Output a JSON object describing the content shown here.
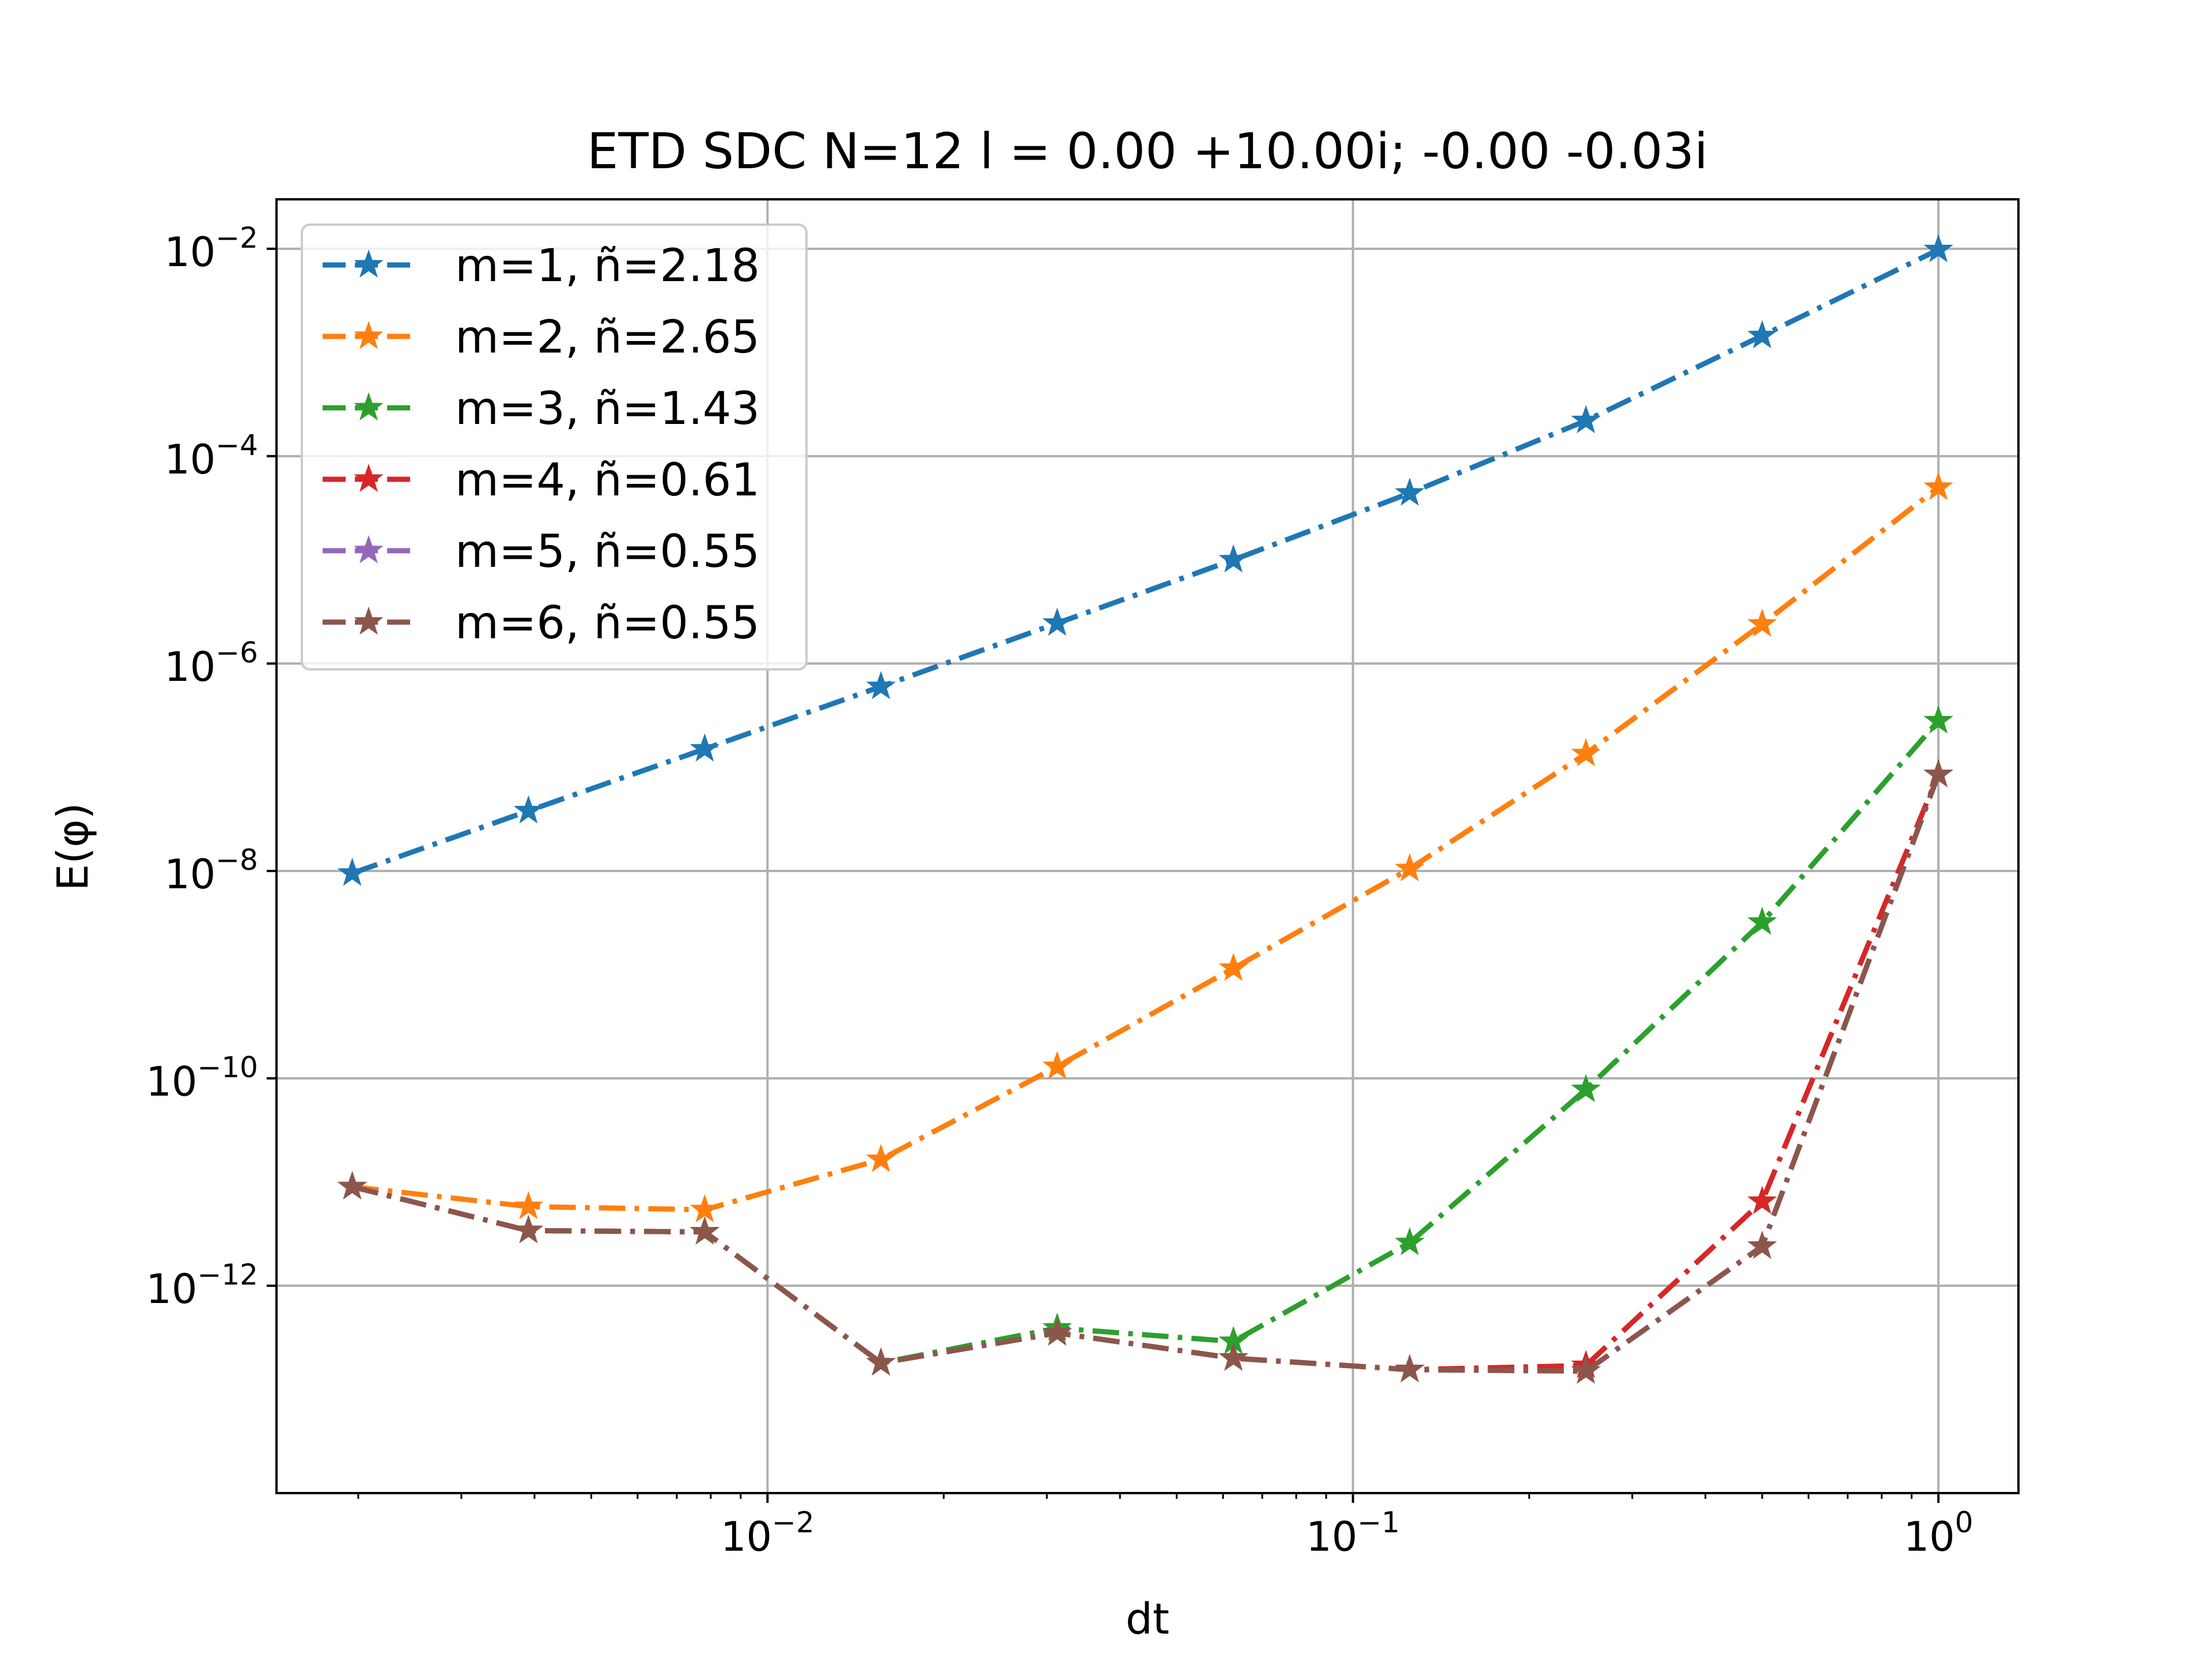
{
  "chart_data": {
    "type": "line",
    "title": "ETD SDC N=12 l = 0.00 +10.00i; -0.00 -0.03i",
    "xlabel": "dt",
    "ylabel": "E(φ)",
    "xscale": "log",
    "yscale": "log",
    "xlim": [
      0.00145,
      1.37
    ],
    "ylim": [
      1e-14,
      0.03
    ],
    "grid": true,
    "legend_position": "top-left",
    "x_ticks": [
      {
        "value": 0.01,
        "base": "10",
        "exp": "−2"
      },
      {
        "value": 0.1,
        "base": "10",
        "exp": "−1"
      },
      {
        "value": 1,
        "base": "10",
        "exp": "0"
      }
    ],
    "y_ticks": [
      {
        "value": 0.01,
        "base": "10",
        "exp": "−2"
      },
      {
        "value": 0.0001,
        "base": "10",
        "exp": "−4"
      },
      {
        "value": 1e-06,
        "base": "10",
        "exp": "−6"
      },
      {
        "value": 1e-08,
        "base": "10",
        "exp": "−8"
      },
      {
        "value": 1e-10,
        "base": "10",
        "exp": "−10"
      },
      {
        "value": 1e-12,
        "base": "10",
        "exp": "−12"
      }
    ],
    "x": [
      0.001953125,
      0.00390625,
      0.0078125,
      0.015625,
      0.03125,
      0.0625,
      0.125,
      0.25,
      0.5,
      1.0
    ],
    "series": [
      {
        "name": "m=1, ñ=2.18",
        "color": "#1f77b4",
        "values": [
          9.5e-09,
          3.8e-08,
          1.5e-07,
          6e-07,
          2.45e-06,
          1e-05,
          4.4e-05,
          0.00022,
          0.00145,
          0.0098
        ]
      },
      {
        "name": "m=2, ñ=2.65",
        "color": "#ff7f0e",
        "values": [
          9e-12,
          5.8e-12,
          5.4e-12,
          1.65e-11,
          1.3e-10,
          1.15e-09,
          1.05e-08,
          1.35e-07,
          2.4e-06,
          5e-05
        ]
      },
      {
        "name": "m=3, ñ=1.43",
        "color": "#2ca02c",
        "values": [
          9e-12,
          3.4e-12,
          3.3e-12,
          1.8e-13,
          3.9e-13,
          2.9e-13,
          2.6e-12,
          7.8e-11,
          3.2e-09,
          2.8e-07
        ]
      },
      {
        "name": "m=4, ñ=0.61",
        "color": "#d62728",
        "values": [
          9e-12,
          3.4e-12,
          3.3e-12,
          1.8e-13,
          3.5e-13,
          2e-13,
          1.55e-13,
          1.7e-13,
          6.5e-12,
          8.5e-08
        ]
      },
      {
        "name": "m=5, ñ=0.55",
        "color": "#9467bd",
        "values": [
          9e-12,
          3.4e-12,
          3.3e-12,
          1.8e-13,
          3.5e-13,
          2e-13,
          1.55e-13,
          1.5e-13,
          2.4e-12,
          8.5e-08
        ]
      },
      {
        "name": "m=6, ñ=0.55",
        "color": "#8c564b",
        "values": [
          9e-12,
          3.4e-12,
          3.3e-12,
          1.8e-13,
          3.5e-13,
          2e-13,
          1.55e-13,
          1.5e-13,
          2.4e-12,
          8.5e-08
        ]
      }
    ]
  }
}
